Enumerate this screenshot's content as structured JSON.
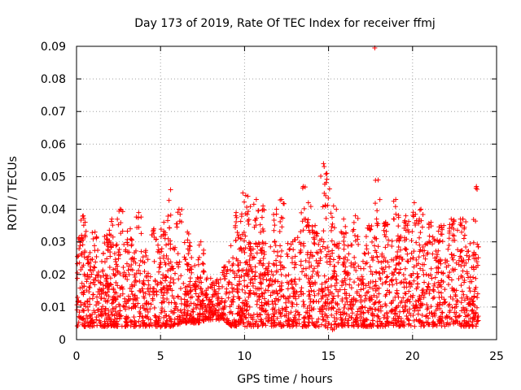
{
  "chart_data": {
    "type": "scatter",
    "title": "Day 173 of 2019, Rate Of TEC Index for receiver ffmj",
    "xlabel": "GPS time / hours",
    "ylabel": "ROTI / TECUs",
    "xlim": [
      0,
      25
    ],
    "ylim": [
      0,
      0.09
    ],
    "grid": true,
    "marker": "+",
    "color": "#ff0000",
    "xticks": [
      0,
      5,
      10,
      15,
      20,
      25
    ],
    "xtick_labels": [
      "0",
      "5",
      "10",
      "15",
      "20",
      "25"
    ],
    "yticks": [
      0,
      0.01,
      0.02,
      0.03,
      0.04,
      0.05,
      0.06,
      0.07,
      0.08,
      0.09
    ],
    "ytick_labels": [
      "0",
      "0.01",
      "0.02",
      "0.03",
      "0.04",
      "0.05",
      "0.06",
      "0.07",
      "0.08",
      "0.09"
    ],
    "series": [
      {
        "name": "ROTI",
        "description": "dense cloud of points; envelope sampled per 0.5 h",
        "x": [
          0.25,
          0.75,
          1.25,
          1.75,
          2.25,
          2.75,
          3.25,
          3.75,
          4.25,
          4.75,
          5.25,
          5.75,
          6.25,
          6.75,
          7.25,
          7.75,
          8.25,
          8.75,
          9.25,
          9.75,
          10.25,
          10.75,
          11.25,
          11.75,
          12.25,
          12.75,
          13.25,
          13.75,
          14.25,
          14.75,
          15.25,
          15.75,
          16.25,
          16.75,
          17.25,
          17.75,
          18.25,
          18.75,
          19.25,
          19.75,
          20.25,
          20.75,
          21.25,
          21.75,
          22.25,
          22.75,
          23.25,
          23.75
        ],
        "typical_low": [
          0.004,
          0.004,
          0.004,
          0.004,
          0.004,
          0.004,
          0.004,
          0.004,
          0.004,
          0.004,
          0.004,
          0.004,
          0.005,
          0.005,
          0.005,
          0.006,
          0.006,
          0.006,
          0.004,
          0.004,
          0.004,
          0.004,
          0.004,
          0.004,
          0.004,
          0.004,
          0.004,
          0.004,
          0.004,
          0.004,
          0.003,
          0.004,
          0.004,
          0.004,
          0.004,
          0.004,
          0.004,
          0.004,
          0.004,
          0.004,
          0.004,
          0.004,
          0.004,
          0.004,
          0.004,
          0.004,
          0.004,
          0.004
        ],
        "typical_high": [
          0.03,
          0.028,
          0.026,
          0.028,
          0.03,
          0.032,
          0.028,
          0.026,
          0.028,
          0.03,
          0.03,
          0.03,
          0.03,
          0.026,
          0.024,
          0.02,
          0.018,
          0.022,
          0.03,
          0.032,
          0.03,
          0.03,
          0.03,
          0.028,
          0.03,
          0.03,
          0.032,
          0.034,
          0.032,
          0.034,
          0.03,
          0.03,
          0.03,
          0.03,
          0.03,
          0.034,
          0.034,
          0.032,
          0.032,
          0.034,
          0.032,
          0.03,
          0.03,
          0.032,
          0.034,
          0.034,
          0.032,
          0.028
        ],
        "peaks": [
          {
            "x": 0.3,
            "y": 0.032
          },
          {
            "x": 0.4,
            "y": 0.038
          },
          {
            "x": 1.1,
            "y": 0.033
          },
          {
            "x": 1.8,
            "y": 0.032
          },
          {
            "x": 2.1,
            "y": 0.037
          },
          {
            "x": 2.6,
            "y": 0.04
          },
          {
            "x": 3.2,
            "y": 0.034
          },
          {
            "x": 3.7,
            "y": 0.039
          },
          {
            "x": 4.6,
            "y": 0.034
          },
          {
            "x": 5.2,
            "y": 0.036
          },
          {
            "x": 5.6,
            "y": 0.046
          },
          {
            "x": 6.1,
            "y": 0.04
          },
          {
            "x": 6.6,
            "y": 0.033
          },
          {
            "x": 7.4,
            "y": 0.03
          },
          {
            "x": 9.5,
            "y": 0.039
          },
          {
            "x": 9.9,
            "y": 0.045
          },
          {
            "x": 10.2,
            "y": 0.044
          },
          {
            "x": 10.7,
            "y": 0.043
          },
          {
            "x": 11.1,
            "y": 0.041
          },
          {
            "x": 11.9,
            "y": 0.04
          },
          {
            "x": 12.2,
            "y": 0.043
          },
          {
            "x": 13.5,
            "y": 0.047
          },
          {
            "x": 13.8,
            "y": 0.042
          },
          {
            "x": 14.2,
            "y": 0.035
          },
          {
            "x": 14.7,
            "y": 0.054
          },
          {
            "x": 14.9,
            "y": 0.051
          },
          {
            "x": 15.3,
            "y": 0.041
          },
          {
            "x": 15.9,
            "y": 0.037
          },
          {
            "x": 16.6,
            "y": 0.038
          },
          {
            "x": 17.4,
            "y": 0.035
          },
          {
            "x": 17.75,
            "y": 0.0895
          },
          {
            "x": 17.95,
            "y": 0.049
          },
          {
            "x": 18.4,
            "y": 0.036
          },
          {
            "x": 19.0,
            "y": 0.043
          },
          {
            "x": 19.6,
            "y": 0.038
          },
          {
            "x": 20.1,
            "y": 0.042
          },
          {
            "x": 20.5,
            "y": 0.04
          },
          {
            "x": 21.1,
            "y": 0.036
          },
          {
            "x": 21.7,
            "y": 0.035
          },
          {
            "x": 22.3,
            "y": 0.037
          },
          {
            "x": 23.0,
            "y": 0.037
          },
          {
            "x": 23.8,
            "y": 0.047
          }
        ]
      }
    ]
  }
}
